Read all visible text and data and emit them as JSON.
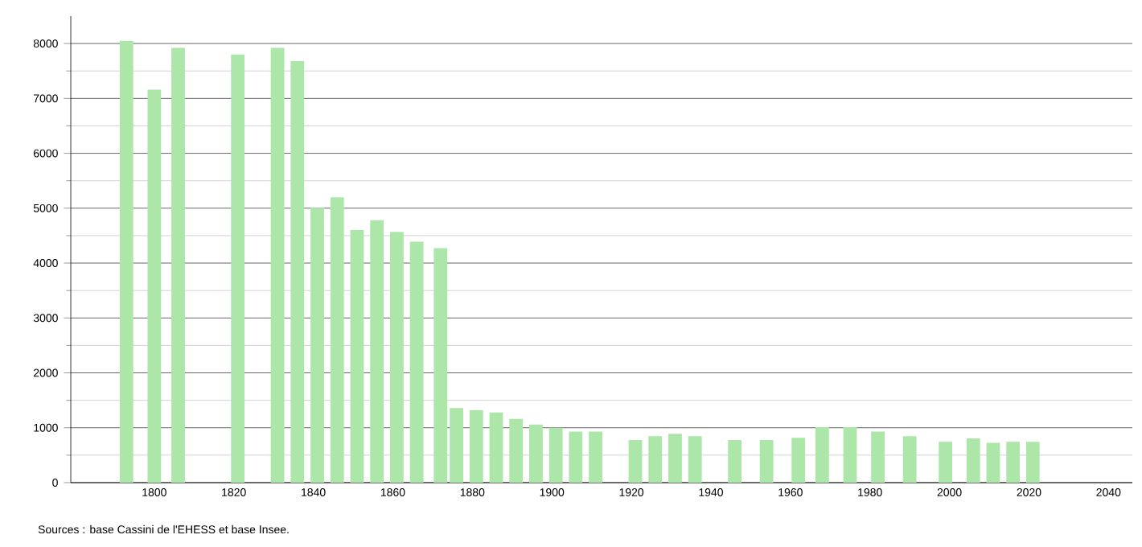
{
  "chart_data": {
    "type": "bar",
    "color": "#ade6a9",
    "x": [
      1793,
      1800,
      1806,
      1821,
      1831,
      1836,
      1841,
      1846,
      1851,
      1856,
      1861,
      1866,
      1872,
      1876,
      1881,
      1886,
      1891,
      1896,
      1901,
      1906,
      1911,
      1921,
      1926,
      1931,
      1936,
      1946,
      1954,
      1962,
      1968,
      1975,
      1982,
      1990,
      1999,
      2006,
      2011,
      2016,
      2021
    ],
    "values": [
      8050,
      7160,
      7920,
      7800,
      7920,
      7680,
      5010,
      5200,
      4600,
      4780,
      4570,
      4390,
      4270,
      1360,
      1320,
      1280,
      1160,
      1060,
      1000,
      930,
      930,
      775,
      845,
      890,
      845,
      775,
      775,
      815,
      1010,
      1010,
      930,
      845,
      745,
      805,
      725,
      745,
      745
    ],
    "xlim": [
      1779,
      2046
    ],
    "ylim": [
      0,
      8500
    ],
    "xticks": [
      1800,
      1820,
      1840,
      1860,
      1880,
      1900,
      1920,
      1940,
      1960,
      1980,
      2000,
      2020,
      2040
    ],
    "yticks": [
      0,
      1000,
      2000,
      3000,
      4000,
      5000,
      6000,
      7000,
      8000
    ],
    "grid": "y",
    "annotations": [
      "Sources : base Cassini de l'EHESS et base Insee."
    ]
  }
}
